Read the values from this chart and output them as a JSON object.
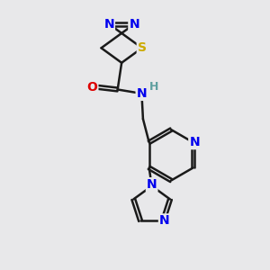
{
  "bg_color": "#e8e8ea",
  "bond_color": "#1a1a1a",
  "bond_width": 1.8,
  "atom_colors": {
    "N": "#0000ee",
    "O": "#dd0000",
    "S": "#ccaa00",
    "H_label": "#5fa0a0"
  },
  "font_size": 10,
  "font_size_h": 9,
  "figsize": [
    3.0,
    3.0
  ],
  "dpi": 100
}
